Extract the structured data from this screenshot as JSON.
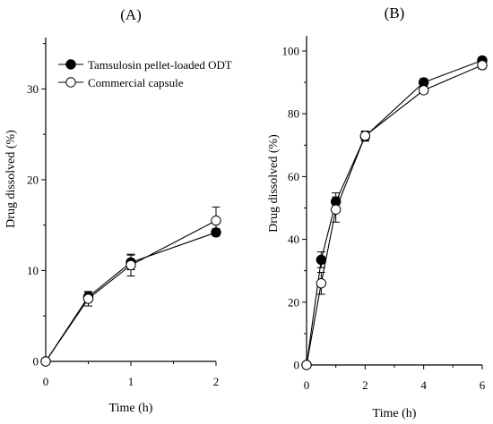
{
  "chart_data": [
    {
      "type": "line",
      "panel_label": "(A)",
      "xlabel": "Time (h)",
      "ylabel": "Drug dissolved (%)",
      "xlim": [
        0,
        2
      ],
      "ylim": [
        0,
        35
      ],
      "xticks": [
        0,
        1,
        2
      ],
      "yticks": [
        0,
        10,
        20,
        30
      ],
      "grid": false,
      "legend": "top-left",
      "series": [
        {
          "name": "Tamsulosin pellet-loaded ODT",
          "marker": "filled-circle",
          "x": [
            0,
            0.5,
            1,
            2
          ],
          "y": [
            0,
            7.1,
            10.9,
            14.2
          ],
          "err": [
            0,
            0.5,
            0.8,
            0.4
          ]
        },
        {
          "name": "Commercial capsule",
          "marker": "open-circle",
          "x": [
            0,
            0.5,
            1,
            2
          ],
          "y": [
            0,
            6.9,
            10.6,
            15.5
          ],
          "err": [
            0,
            0.8,
            1.2,
            1.5
          ]
        }
      ]
    },
    {
      "type": "line",
      "panel_label": "(B)",
      "xlabel": "Time (h)",
      "ylabel": "Drug dissolved (%)",
      "xlim": [
        0,
        6
      ],
      "ylim": [
        0,
        100
      ],
      "xticks": [
        0,
        2,
        4,
        6
      ],
      "yticks": [
        0,
        20,
        40,
        60,
        80,
        100
      ],
      "grid": false,
      "legend": "",
      "series": [
        {
          "name": "",
          "marker": "filled-circle",
          "x": [
            0,
            0.5,
            1,
            2,
            4,
            6
          ],
          "y": [
            0,
            33.5,
            52.0,
            72.8,
            90.0,
            97.0
          ],
          "err": [
            0,
            2.5,
            2.8,
            1.5,
            1.2,
            1.0
          ]
        },
        {
          "name": "",
          "marker": "open-circle",
          "x": [
            0,
            0.5,
            1,
            2,
            4,
            6
          ],
          "y": [
            0,
            26.0,
            49.5,
            73.0,
            87.5,
            95.5
          ],
          "err": [
            0,
            3.5,
            4.0,
            1.5,
            1.0,
            1.2
          ]
        }
      ]
    }
  ]
}
